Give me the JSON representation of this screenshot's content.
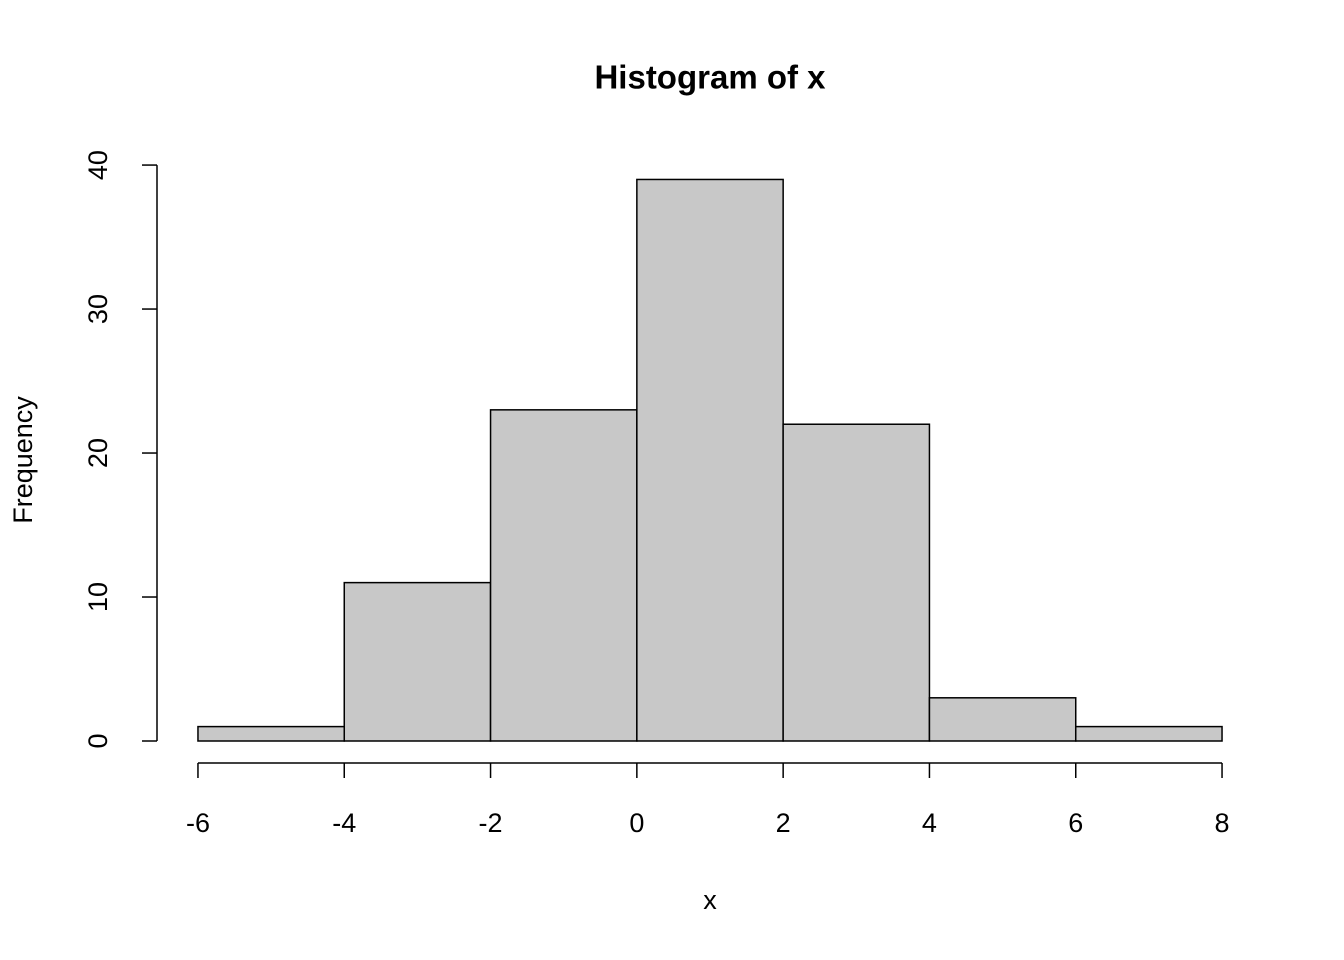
{
  "chart_data": {
    "type": "histogram",
    "title": "Histogram of x",
    "x_label": "x",
    "y_label": "Frequency",
    "bins": [
      -6,
      -4,
      -2,
      0,
      2,
      4,
      6,
      8
    ],
    "values": [
      1,
      11,
      23,
      39,
      22,
      3,
      1
    ],
    "color": "#c8c8c8",
    "xlim": [
      -6.56,
      8.56
    ],
    "ylim": [
      0,
      40.56
    ],
    "xticks": [
      -6,
      -4,
      -2,
      0,
      2,
      4,
      6,
      8
    ],
    "yticks": [
      0,
      10,
      20,
      30,
      40
    ]
  }
}
